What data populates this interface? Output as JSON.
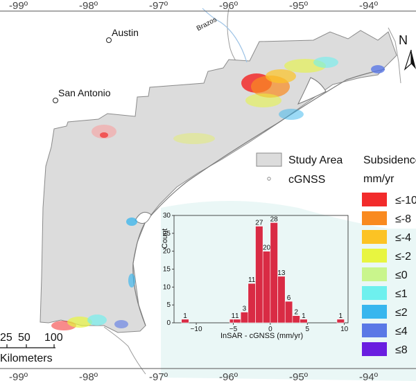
{
  "cities": [
    {
      "name": "Austin"
    },
    {
      "name": "San Antonio"
    }
  ],
  "river_label": "Brazos",
  "north_label": "N",
  "longitude_ticks_top": [
    "-99º",
    "-98º",
    "-97º",
    "-96º",
    "-95º",
    "-94º"
  ],
  "longitude_ticks_bottom": [
    "-99º",
    "-98º",
    "-97º",
    "-96º",
    "-95º",
    "-94º"
  ],
  "scale_bar": {
    "labels": [
      "25",
      "50",
      "100"
    ],
    "unit": "Kilometers"
  },
  "legend": {
    "study_area": "Study Area",
    "cgnss": "cGNSS",
    "title_line1": "Subsidence",
    "title_line2": "mm/yr",
    "classes": [
      {
        "label": "≤-10",
        "color": "#f22b2b"
      },
      {
        "label": "≤-8",
        "color": "#f98a1f"
      },
      {
        "label": "≤-4",
        "color": "#fcc324"
      },
      {
        "label": "≤-2",
        "color": "#e8f540"
      },
      {
        "label": "≤0",
        "color": "#c9f58c"
      },
      {
        "label": "≤1",
        "color": "#6ef0ee"
      },
      {
        "label": "≤2",
        "color": "#38b6ee"
      },
      {
        "label": "≤4",
        "color": "#5a78e6"
      },
      {
        "label": "≤8",
        "color": "#6a1ee0"
      }
    ]
  },
  "chart_data": {
    "type": "bar",
    "xlabel": "InSAR - cGNSS (mm/yr)",
    "ylabel": "Count",
    "xlim": [
      -13,
      10.5
    ],
    "ylim": [
      0,
      30
    ],
    "x_ticks": [
      "−10",
      "−5",
      "0",
      "5",
      "10"
    ],
    "y_ticks": [
      "0",
      "5",
      "10",
      "15",
      "20",
      "25",
      "30"
    ],
    "bars": [
      {
        "x": -11.5,
        "count": 1,
        "label": "1"
      },
      {
        "x": -5.0,
        "count": 1,
        "label": "1"
      },
      {
        "x": -4.5,
        "count": 1,
        "label": "1"
      },
      {
        "x": -3.5,
        "count": 3,
        "label": "3"
      },
      {
        "x": -2.5,
        "count": 11,
        "label": "11"
      },
      {
        "x": -1.5,
        "count": 27,
        "label": "27"
      },
      {
        "x": -0.5,
        "count": 20,
        "label": "20"
      },
      {
        "x": 0.5,
        "count": 28,
        "label": "28"
      },
      {
        "x": 1.5,
        "count": 13,
        "label": "13"
      },
      {
        "x": 2.5,
        "count": 6,
        "label": "6"
      },
      {
        "x": 3.5,
        "count": 2,
        "label": "2"
      },
      {
        "x": 4.5,
        "count": 1,
        "label": "1"
      },
      {
        "x": 9.5,
        "count": 1,
        "label": "1"
      }
    ],
    "bar_color": "#d92b44"
  }
}
